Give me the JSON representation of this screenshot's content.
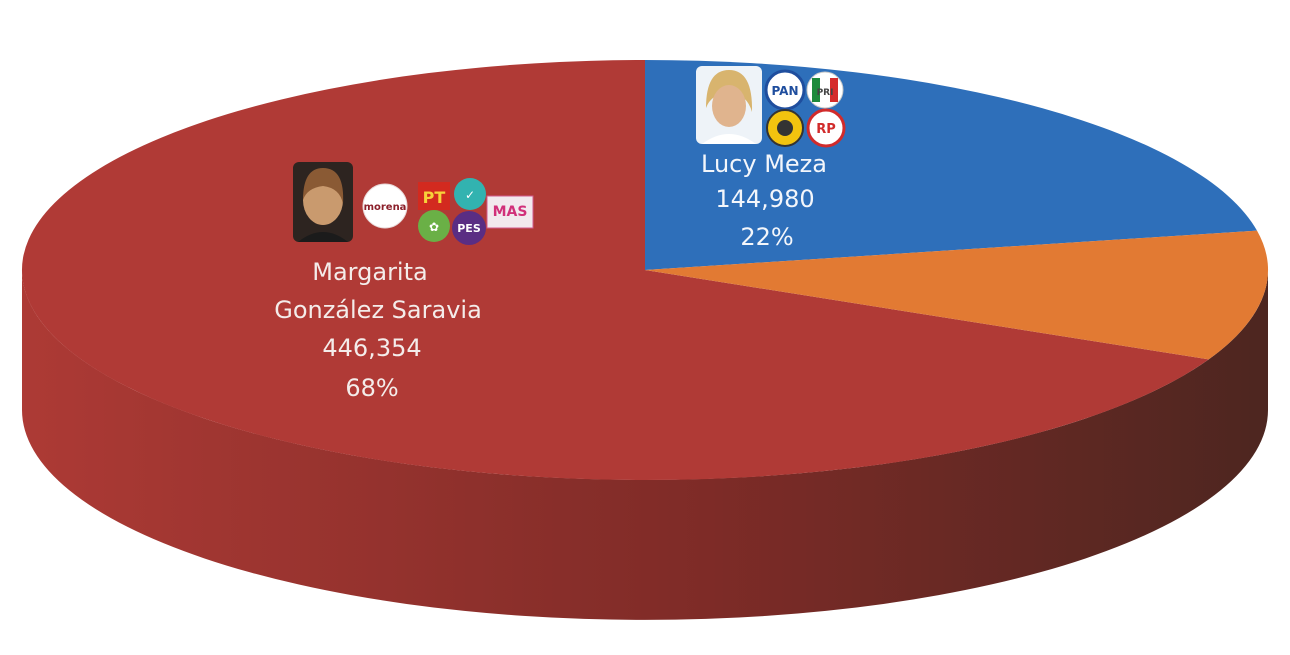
{
  "chart_data": {
    "type": "pie",
    "style": "3d",
    "slices": [
      {
        "name_lines": [
          "Margarita",
          "González Saravia"
        ],
        "value": 446354,
        "value_label": "446,354",
        "percent": 68,
        "percent_label": "68%",
        "color": "#b03a36",
        "side_color": "#7a2a26"
      },
      {
        "name_lines": [
          "Lucy Meza"
        ],
        "value": 144980,
        "value_label": "144,980",
        "percent": 22,
        "percent_label": "22%",
        "color": "#2e6fba",
        "side_color": "#1f4f88"
      },
      {
        "name_lines": [],
        "percent": 10,
        "color": "#e27a33",
        "side_color": "#6b4028"
      }
    ],
    "party_logos": {
      "margarita": [
        "morena",
        "PT",
        "verde",
        "PVEM",
        "PES",
        "MAS"
      ],
      "lucy": [
        "PAN",
        "PRI",
        "PRD",
        "RP"
      ]
    }
  }
}
